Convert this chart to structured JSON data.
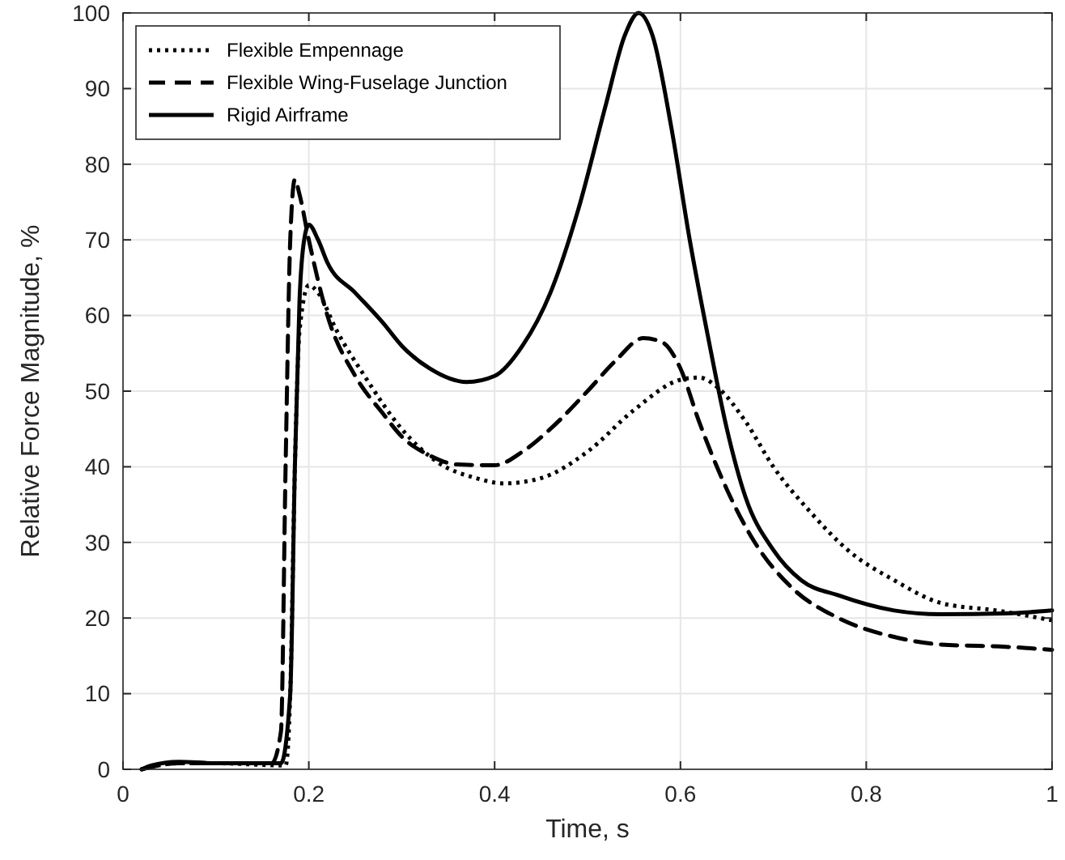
{
  "chart_data": {
    "type": "line",
    "xlabel": "Time, s",
    "ylabel": "Relative Force Magnitude, %",
    "xlim": [
      0,
      1
    ],
    "ylim": [
      0,
      100
    ],
    "xticks": [
      0,
      0.2,
      0.4,
      0.6,
      0.8,
      1
    ],
    "yticks": [
      0,
      10,
      20,
      30,
      40,
      50,
      60,
      70,
      80,
      90,
      100
    ],
    "grid": true,
    "legend": "top left",
    "series": [
      {
        "name": "Flexible Empennage",
        "color": "#000000",
        "line_style": "dotted",
        "x": [
          0.02,
          0.06,
          0.1,
          0.175,
          0.18,
          0.185,
          0.19,
          0.2,
          0.21,
          0.23,
          0.26,
          0.3,
          0.34,
          0.38,
          0.41,
          0.45,
          0.5,
          0.55,
          0.6,
          0.62,
          0.64,
          0.67,
          0.7,
          0.74,
          0.78,
          0.83,
          0.88,
          0.94,
          1
        ],
        "values": [
          0,
          0.8,
          0.8,
          0.5,
          10,
          40,
          58,
          64,
          63,
          58,
          52,
          45,
          40.5,
          38.5,
          37.8,
          38.5,
          42,
          47.5,
          51.5,
          51.8,
          50.5,
          46,
          40,
          34,
          29,
          25,
          22,
          21,
          19.7
        ]
      },
      {
        "name": "Flexible Wing-Fuselage Junction",
        "color": "#000000",
        "line_style": "dashed",
        "x": [
          0.02,
          0.06,
          0.16,
          0.17,
          0.175,
          0.18,
          0.185,
          0.19,
          0.2,
          0.22,
          0.25,
          0.28,
          0.3,
          0.33,
          0.36,
          0.4,
          0.43,
          0.46,
          0.5,
          0.53,
          0.56,
          0.58,
          0.6,
          0.62,
          0.65,
          0.68,
          0.72,
          0.77,
          0.83,
          0.88,
          0.95,
          1
        ],
        "values": [
          0,
          0.8,
          0.8,
          5,
          40,
          70,
          78,
          76,
          70,
          60,
          52,
          47,
          44,
          41.5,
          40.3,
          40.2,
          42,
          45,
          50,
          54,
          57,
          56.5,
          53,
          46,
          37,
          30,
          24,
          20,
          17.5,
          16.5,
          16.2,
          15.8
        ]
      },
      {
        "name": "Rigid Airframe",
        "color": "#000000",
        "line_style": "solid",
        "x": [
          0.02,
          0.03,
          0.06,
          0.1,
          0.17,
          0.18,
          0.185,
          0.19,
          0.195,
          0.2,
          0.21,
          0.22,
          0.25,
          0.28,
          0.3,
          0.33,
          0.37,
          0.4,
          0.43,
          0.46,
          0.49,
          0.52,
          0.54,
          0.555,
          0.57,
          0.59,
          0.61,
          0.63,
          0.65,
          0.67,
          0.7,
          0.73,
          0.77,
          0.83,
          0.88,
          0.95,
          1
        ],
        "values": [
          0,
          0.5,
          1,
          0.8,
          0.8,
          10,
          40,
          62,
          70,
          72,
          70,
          67,
          63,
          59,
          56,
          53,
          51.2,
          52,
          56,
          63,
          74,
          88,
          97,
          100,
          97,
          85,
          70,
          57,
          45,
          36,
          29,
          25,
          23,
          21,
          20.5,
          20.6,
          21
        ]
      }
    ]
  }
}
